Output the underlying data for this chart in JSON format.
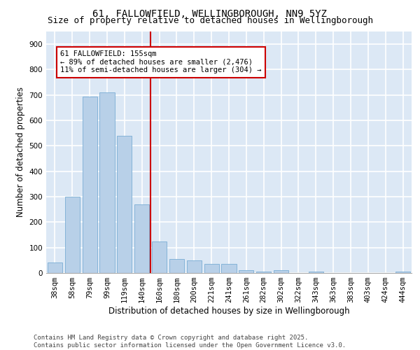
{
  "title": "61, FALLOWFIELD, WELLINGBOROUGH, NN9 5YZ",
  "subtitle": "Size of property relative to detached houses in Wellingborough",
  "xlabel": "Distribution of detached houses by size in Wellingborough",
  "ylabel": "Number of detached properties",
  "categories": [
    "38sqm",
    "58sqm",
    "79sqm",
    "99sqm",
    "119sqm",
    "140sqm",
    "160sqm",
    "180sqm",
    "200sqm",
    "221sqm",
    "241sqm",
    "261sqm",
    "282sqm",
    "302sqm",
    "322sqm",
    "343sqm",
    "363sqm",
    "383sqm",
    "403sqm",
    "424sqm",
    "444sqm"
  ],
  "values": [
    40,
    300,
    695,
    710,
    540,
    270,
    125,
    55,
    50,
    35,
    35,
    10,
    5,
    10,
    0,
    5,
    0,
    0,
    0,
    0,
    5
  ],
  "bar_color": "#b8d0e8",
  "bar_edge_color": "#7aadd4",
  "vline_x_index": 6,
  "vline_color": "#cc0000",
  "annotation_text": "61 FALLOWFIELD: 155sqm\n← 89% of detached houses are smaller (2,476)\n11% of semi-detached houses are larger (304) →",
  "annotation_box_color": "#ffffff",
  "annotation_box_edge_color": "#cc0000",
  "ylim": [
    0,
    950
  ],
  "yticks": [
    0,
    100,
    200,
    300,
    400,
    500,
    600,
    700,
    800,
    900
  ],
  "background_color": "#dce8f5",
  "grid_color": "#ffffff",
  "footer_text": "Contains HM Land Registry data © Crown copyright and database right 2025.\nContains public sector information licensed under the Open Government Licence v3.0.",
  "title_fontsize": 10,
  "subtitle_fontsize": 9,
  "axis_label_fontsize": 8.5,
  "tick_fontsize": 7.5,
  "annotation_fontsize": 7.5,
  "footer_fontsize": 6.5
}
